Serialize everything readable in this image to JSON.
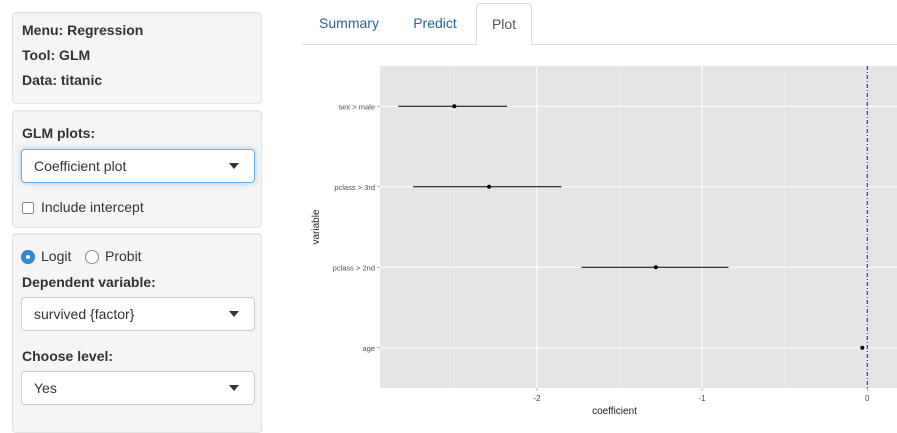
{
  "sidebar": {
    "info": {
      "menu": "Menu: Regression",
      "tool": "Tool: GLM",
      "data": "Data: titanic"
    },
    "plots": {
      "label": "GLM plots:",
      "selected": "Coefficient plot",
      "checkbox_label": "Include intercept",
      "checkbox_checked": false
    },
    "model": {
      "radio_logit": "Logit",
      "radio_probit": "Probit",
      "selected": "Logit",
      "dependent_label": "Dependent variable:",
      "dependent_value": "survived {factor}",
      "level_label": "Choose level:",
      "level_value": "Yes"
    }
  },
  "tabs": [
    {
      "label": "Summary",
      "active": false
    },
    {
      "label": "Predict",
      "active": false
    },
    {
      "label": "Plot",
      "active": true
    }
  ],
  "chart_data": {
    "type": "scatter",
    "xlabel": "coefficient",
    "ylabel": "variable",
    "xlim": [
      -2.95,
      0.18
    ],
    "xticks": [
      -2,
      -1,
      0
    ],
    "xtick_labels": [
      "-2",
      "-1",
      "0"
    ],
    "categories": [
      "sex > male",
      "pclass > 3rd",
      "pclass > 2nd",
      "age"
    ],
    "estimates": [
      -2.5,
      -2.29,
      -1.28,
      -0.03
    ],
    "ci_low": [
      -2.84,
      -2.75,
      -1.73,
      -0.04
    ],
    "ci_high": [
      -2.18,
      -1.85,
      -0.84,
      -0.02
    ],
    "reference_line": 0,
    "reference_color": "#0000ff",
    "background_color": "#e5e5e5",
    "grid": true
  }
}
